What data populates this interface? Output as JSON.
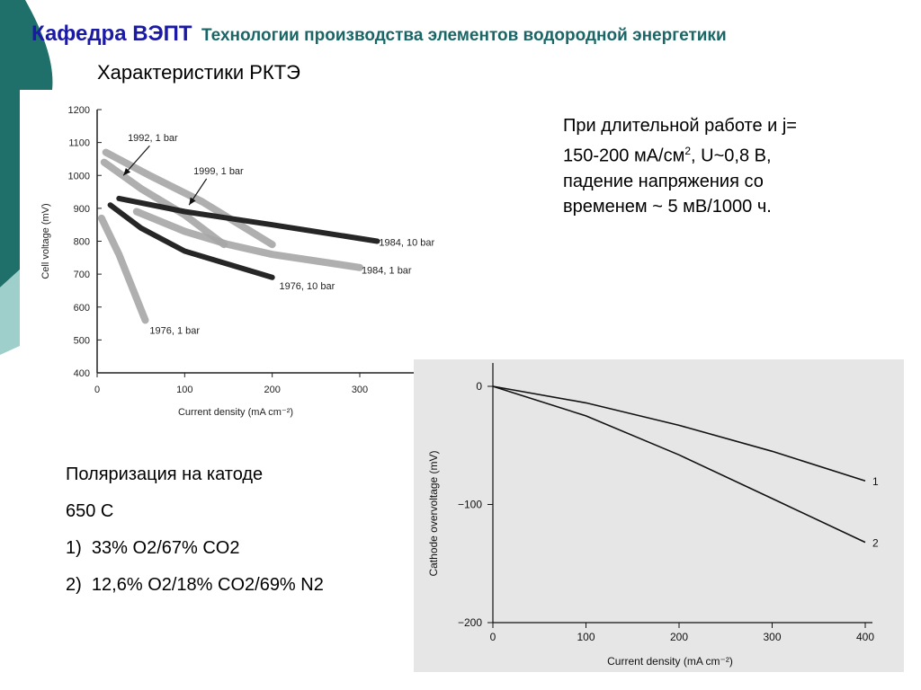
{
  "header": {
    "dept": "Кафедра ВЭПТ",
    "course": "Технологии производства элементов водородной энергетики"
  },
  "subtitle": "Характеристики РКТЭ",
  "note": {
    "line1": "При длительной работе и j=",
    "line2_pre": "150-200 мА/см",
    "line2_sup": "2",
    "line2_post": ", U~0,8 В,",
    "line3": "падение напряжения со",
    "line4": "временем ~ 5 мВ/1000 ч."
  },
  "polarization": {
    "title": "Поляризация на катоде",
    "temp": "650 С",
    "item1_num": "1)",
    "item1": "33% O2/67% CO2",
    "item2_num": "2)",
    "item2": "12,6% O2/18% CO2/69% N2"
  },
  "colors": {
    "teal_dark": "#1f6f6b",
    "teal_light": "#9fcfcb",
    "header_blue": "#1a1aa6",
    "header_teal": "#1a6666",
    "band_gray": "#a6a6a6",
    "band_dark": "#262626"
  },
  "chart_data": [
    {
      "type": "line",
      "xlabel": "Current density (mA cm⁻²)",
      "ylabel": "Cell voltage (mV)",
      "xlim": [
        0,
        300
      ],
      "ylim": [
        400,
        1200
      ],
      "xticks": [
        0,
        100,
        200,
        300
      ],
      "yticks": [
        400,
        500,
        600,
        700,
        800,
        900,
        1000,
        1100,
        1200
      ],
      "series": [
        {
          "name": "1976, 1 bar",
          "style": "light",
          "points": [
            [
              5,
              870
            ],
            [
              25,
              760
            ],
            [
              55,
              560
            ]
          ]
        },
        {
          "name": "1976, 10 bar",
          "style": "dark",
          "points": [
            [
              15,
              910
            ],
            [
              50,
              840
            ],
            [
              100,
              770
            ],
            [
              150,
              730
            ],
            [
              200,
              690
            ]
          ]
        },
        {
          "name": "1984, 1 bar",
          "style": "light",
          "points": [
            [
              45,
              890
            ],
            [
              100,
              830
            ],
            [
              150,
              790
            ],
            [
              200,
              760
            ],
            [
              300,
              720
            ]
          ]
        },
        {
          "name": "1984, 10 bar",
          "style": "dark",
          "points": [
            [
              25,
              930
            ],
            [
              100,
              890
            ],
            [
              200,
              850
            ],
            [
              320,
              800
            ]
          ]
        },
        {
          "name": "1992, 1 bar",
          "style": "light",
          "points": [
            [
              8,
              1040
            ],
            [
              50,
              960
            ],
            [
              100,
              880
            ],
            [
              145,
              790
            ]
          ]
        },
        {
          "name": "1999, 1 bar",
          "style": "light",
          "points": [
            [
              10,
              1070
            ],
            [
              60,
              1000
            ],
            [
              120,
              920
            ],
            [
              200,
              790
            ]
          ]
        }
      ],
      "annotations": [
        {
          "text": "1992, 1 bar",
          "x": 35,
          "y": 1115
        },
        {
          "text": "1999, 1 bar",
          "x": 110,
          "y": 1015
        },
        {
          "text": "1984, 10 bar",
          "x": 322,
          "y": 797
        },
        {
          "text": "1984, 1 bar",
          "x": 302,
          "y": 712
        },
        {
          "text": "1976, 10 bar",
          "x": 208,
          "y": 665
        },
        {
          "text": "1976, 1 bar",
          "x": 60,
          "y": 530
        }
      ]
    },
    {
      "type": "line",
      "xlabel": "Current density (mA cm⁻²)",
      "ylabel": "Cathode overvoltage (mV)",
      "xlim": [
        0,
        400
      ],
      "ylim": [
        -200,
        0
      ],
      "xticks": [
        0,
        100,
        200,
        300,
        400
      ],
      "yticks": [
        0,
        -100,
        -200
      ],
      "ytick_labels": [
        "0",
        "−100",
        "−200"
      ],
      "series": [
        {
          "name": "1",
          "points": [
            [
              0,
              0
            ],
            [
              100,
              -14
            ],
            [
              200,
              -33
            ],
            [
              300,
              -55
            ],
            [
              400,
              -80
            ]
          ]
        },
        {
          "name": "2",
          "points": [
            [
              0,
              0
            ],
            [
              100,
              -25
            ],
            [
              200,
              -58
            ],
            [
              300,
              -95
            ],
            [
              400,
              -132
            ]
          ]
        }
      ]
    }
  ]
}
